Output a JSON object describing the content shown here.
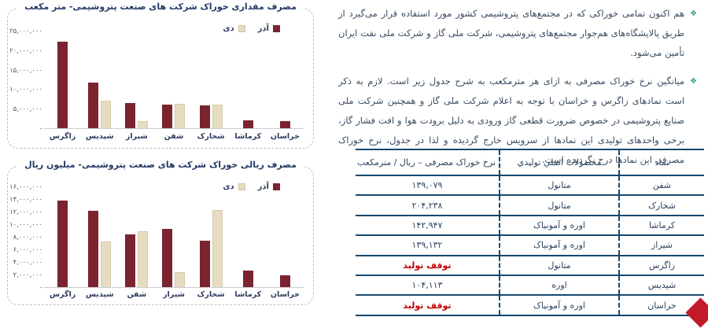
{
  "paragraphs": [
    {
      "bullet": "❖",
      "text": "هم اکنون تمامی خوراکی که در مجتمع‌های پتروشیمی کشور مورد استفاده قرار می‌گیرد از طریق پالایشگاه‌های هم‌جوار مجتمع‌های پتروشیمی، شرکت ملی گاز و شرکت ملی نفت ایران تأمین می‌شود."
    },
    {
      "bullet": "❖",
      "text": "میانگین نرخ خوراک مصرفی به ازای هر مترمکعب به شرح جدول زیر است. لازم به ذکر است نمادهای زاگرس و خراسان با توجه به اعلام شرکت ملی گاز و همچنین شرکت ملی صنایع پتروشیمی در خصوص ضرورت قطعی گاز ورودی به دلیل برودت هوا و افت فشار گاز، برخی واحدهای تولیدی این نمادها از سرویس خارج گردیده و لذا در جدول، نرخ خوراک مصرفی این نمادها درج نگردیده است."
    }
  ],
  "chart_data": [
    {
      "type": "bar",
      "title": "مصرف مقداری خوراک شرکت های صنعت پتروشیمی- متر مکعب",
      "categories": [
        "زاگرس",
        "شپدیس",
        "شیراز",
        "شفن",
        "شخارک",
        "کرماشا",
        "خراسان"
      ],
      "series": [
        {
          "name": "آذر",
          "color": "#7a2430",
          "values": [
            22300000,
            11700000,
            6600000,
            6100000,
            5900000,
            2000000,
            1900000
          ]
        },
        {
          "name": "دی",
          "color": "#e6dcc2",
          "values": [
            0,
            7100000,
            1800000,
            6300000,
            6000000,
            0,
            0
          ]
        }
      ],
      "ylim": [
        0,
        25000000
      ],
      "ytick_labels": [
        "۲۵,۰۰۰,۰۰۰",
        "۲۰,۰۰۰,۰۰۰",
        "۱۵,۰۰۰,۰۰۰",
        "۱۰,۰۰۰,۰۰۰",
        "۵,۰۰۰,۰۰۰",
        "-"
      ],
      "grid": false,
      "legend_position": "inside-top-right"
    },
    {
      "type": "bar",
      "title": "مصرف ریالی خوراک شرکت های صنعت پتروشیمی- میلیون ریال",
      "categories": [
        "زاگرس",
        "شپدیس",
        "شفن",
        "شیراز",
        "شخارک",
        "کرماشا",
        "خراسان"
      ],
      "series": [
        {
          "name": "آذر",
          "color": "#7a2430",
          "values": [
            13900000,
            12200000,
            8500000,
            9300000,
            7400000,
            2700000,
            1900000
          ]
        },
        {
          "name": "دی",
          "color": "#e6dcc2",
          "values": [
            0,
            7300000,
            8900000,
            2400000,
            12400000,
            0,
            0
          ]
        }
      ],
      "ylim": [
        0,
        16000000
      ],
      "ytick_labels": [
        "۱۶,۰۰۰,۰۰۰",
        "۱۴,۰۰۰,۰۰۰",
        "۱۲,۰۰۰,۰۰۰",
        "۱۰,۰۰۰,۰۰۰",
        "۸,۰۰۰,۰۰۰",
        "۶,۰۰۰,۰۰۰",
        "۴,۰۰۰,۰۰۰",
        "۲,۰۰۰,۰۰۰",
        "-"
      ],
      "grid": false,
      "legend_position": "inside-top-right"
    }
  ],
  "table": {
    "headers": [
      "نماد",
      "محصولات اصلي توليدي",
      "نرخ خوراک مصرفی – ریال / مترمکعب"
    ],
    "rows": [
      {
        "symbol": "شفن",
        "products": "متانول",
        "rate": "۱۳۹,۰۷۹",
        "stopped": false
      },
      {
        "symbol": "شخارک",
        "products": "متانول",
        "rate": "۲۰۴,۲۳۸",
        "stopped": false
      },
      {
        "symbol": "کرماشا",
        "products": "اوره و آمونیاک",
        "rate": "۱۴۲,۹۴۷",
        "stopped": false
      },
      {
        "symbol": "شیراز",
        "products": "اوره و آمونیاک",
        "rate": "۱۳۹,۱۳۲",
        "stopped": false
      },
      {
        "symbol": "زاگرس",
        "products": "متانول",
        "rate": "توقف تولید",
        "stopped": true
      },
      {
        "symbol": "شپدیس",
        "products": "اوره",
        "rate": "۱۰۴,۱۱۳",
        "stopped": false
      },
      {
        "symbol": "خراسان",
        "products": "اوره و آمونیاک",
        "rate": "توقف تولید",
        "stopped": true
      }
    ]
  },
  "colors": {
    "bar_azar": "#7a2430",
    "bar_dey": "#e6dcc2",
    "chart_title": "#233a66",
    "body_text": "#394b61",
    "table_border": "#17486d",
    "stopped_text": "#c00000",
    "bullet": "#2aa58f",
    "nav_arrow": "#c21a28"
  }
}
